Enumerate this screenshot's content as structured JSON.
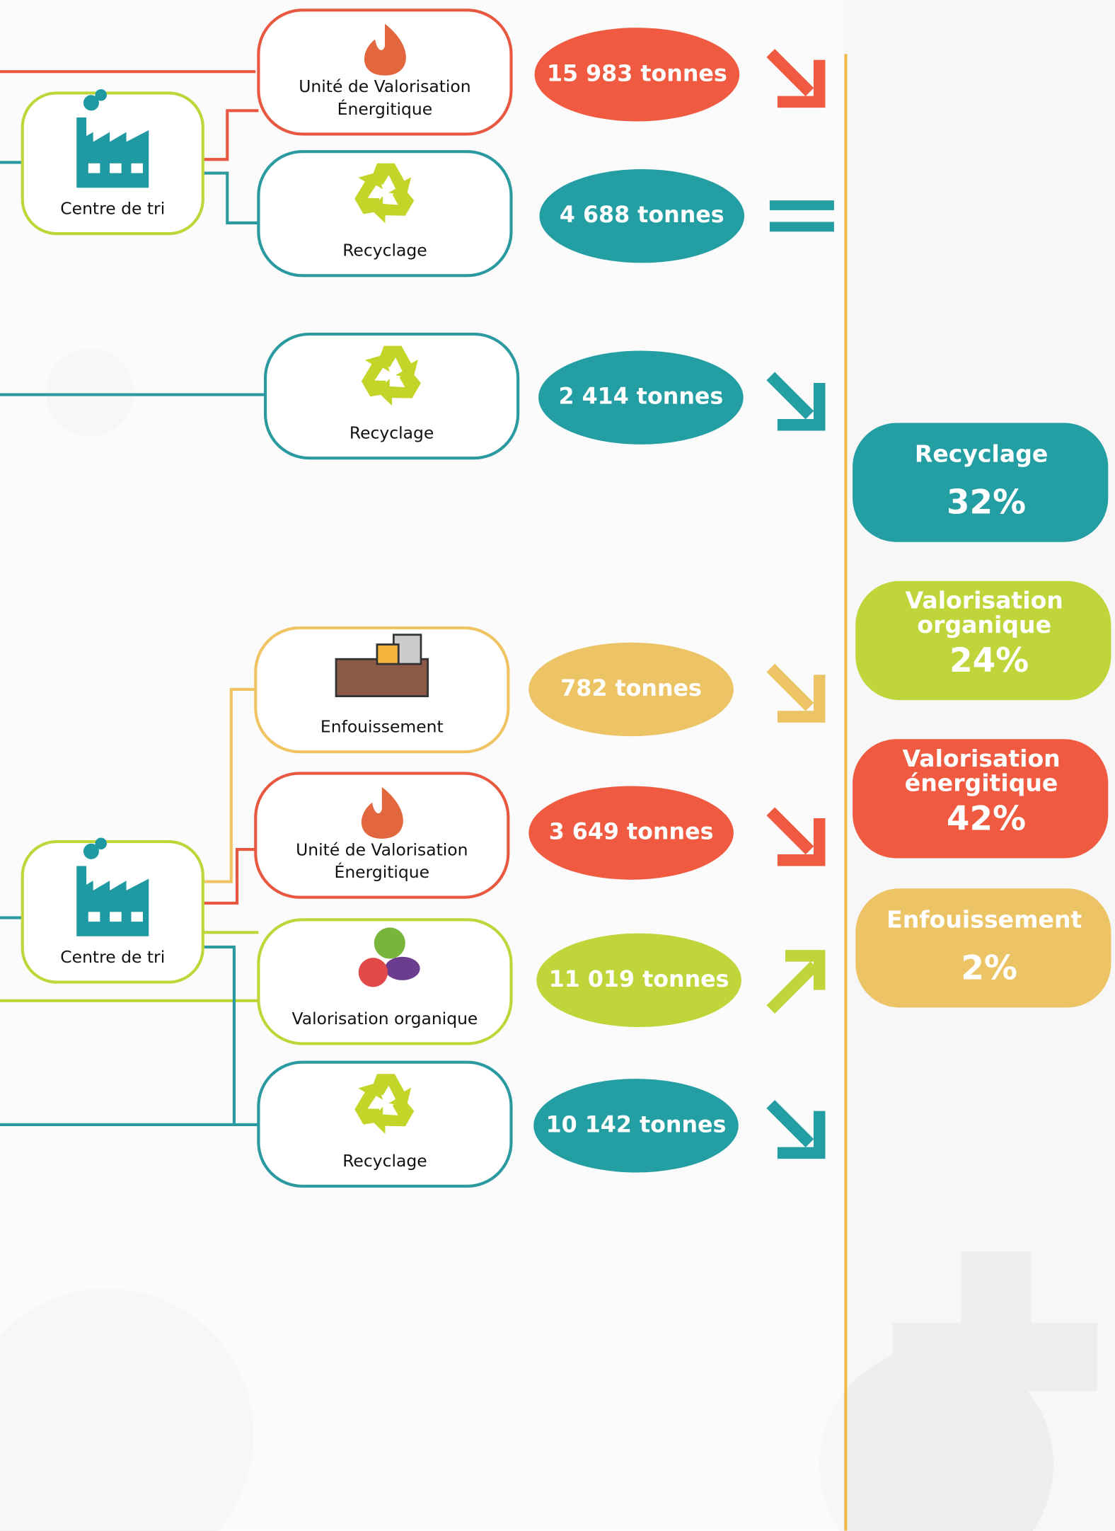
{
  "centres": [
    "Centre de tri",
    "Centre de tri"
  ],
  "flows": [
    {
      "label": [
        "Unité de Valorisation",
        "Énergitique"
      ],
      "amount": "15 983 tonnes"
    },
    {
      "label": [
        "Recyclage"
      ],
      "amount": "4 688 tonnes"
    },
    {
      "label": [
        "Recyclage"
      ],
      "amount": "2 414 tonnes"
    },
    {
      "label": [
        "Enfouissement"
      ],
      "amount": "782 tonnes"
    },
    {
      "label": [
        "Unité de Valorisation",
        "Énergitique"
      ],
      "amount": "3 649 tonnes"
    },
    {
      "label": [
        "Valorisation organique"
      ],
      "amount": "11 019 tonnes"
    },
    {
      "label": [
        "Recyclage"
      ],
      "amount": "10 142 tonnes"
    }
  ],
  "summary": [
    {
      "label": [
        "Recyclage"
      ],
      "percent": "32%"
    },
    {
      "label": [
        "Valorisation",
        "organique"
      ],
      "percent": "24%"
    },
    {
      "label": [
        "Valorisation",
        "énergitique"
      ],
      "percent": "42%"
    },
    {
      "label": [
        "Enfouissement"
      ],
      "percent": "2%"
    }
  ]
}
